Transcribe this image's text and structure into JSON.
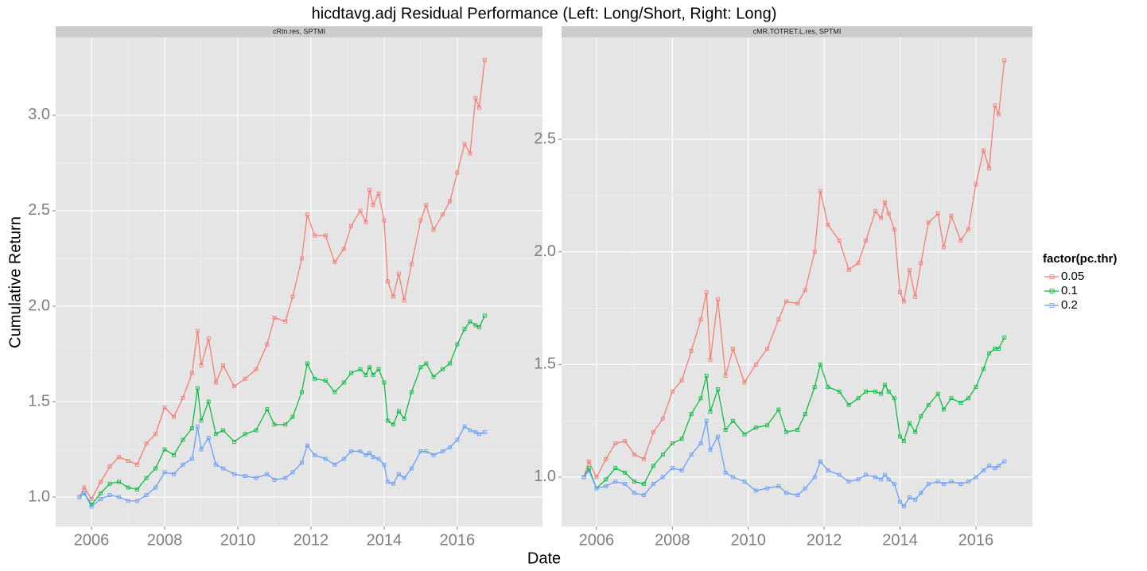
{
  "title": "hicdtavg.adj Residual Performance (Left: Long/Short, Right: Long)",
  "x_label": "Date",
  "y_label": "Cumulative Return",
  "legend": {
    "title": "factor(pc.thr)",
    "position": "right"
  },
  "chart_data": [
    {
      "type": "line",
      "subtitle": "cRtn.res, SPTMI",
      "grid": true,
      "x": [
        2005.67,
        2005.8,
        2006.0,
        2006.25,
        2006.5,
        2006.75,
        2007.0,
        2007.25,
        2007.5,
        2007.75,
        2008.0,
        2008.25,
        2008.5,
        2008.75,
        2008.9,
        2009.0,
        2009.2,
        2009.4,
        2009.6,
        2009.9,
        2010.2,
        2010.5,
        2010.8,
        2011.0,
        2011.3,
        2011.5,
        2011.75,
        2011.9,
        2012.1,
        2012.4,
        2012.65,
        2012.9,
        2013.1,
        2013.35,
        2013.5,
        2013.6,
        2013.7,
        2013.85,
        2014.0,
        2014.1,
        2014.25,
        2014.4,
        2014.55,
        2014.75,
        2015.0,
        2015.15,
        2015.35,
        2015.6,
        2015.8,
        2016.0,
        2016.2,
        2016.35,
        2016.5,
        2016.6,
        2016.75
      ],
      "xlim": [
        2005.02,
        2018.33
      ],
      "xticks": [
        2006,
        2008,
        2010,
        2012,
        2014,
        2016
      ],
      "ylim": [
        0.846,
        3.408
      ],
      "yticks": [
        {
          "value": 1,
          "label": "1.0"
        },
        {
          "value": 1.5,
          "label": "1.5"
        },
        {
          "value": 2,
          "label": "2.0"
        },
        {
          "value": 2.5,
          "label": "2.5"
        },
        {
          "value": 3,
          "label": "3.0"
        }
      ],
      "series": [
        {
          "name": "0.05",
          "color": "#F8766D",
          "values": [
            1.0,
            1.05,
            0.99,
            1.08,
            1.16,
            1.21,
            1.19,
            1.17,
            1.28,
            1.33,
            1.47,
            1.42,
            1.52,
            1.65,
            1.87,
            1.69,
            1.83,
            1.6,
            1.69,
            1.58,
            1.62,
            1.67,
            1.8,
            1.94,
            1.92,
            2.05,
            2.25,
            2.48,
            2.37,
            2.37,
            2.23,
            2.3,
            2.42,
            2.5,
            2.44,
            2.61,
            2.53,
            2.59,
            2.45,
            2.13,
            2.05,
            2.17,
            2.03,
            2.22,
            2.45,
            2.53,
            2.4,
            2.48,
            2.55,
            2.7,
            2.85,
            2.8,
            3.09,
            3.04,
            3.29
          ]
        },
        {
          "name": "0.1",
          "color": "#00BA38",
          "values": [
            1.0,
            1.02,
            0.96,
            1.02,
            1.07,
            1.08,
            1.05,
            1.04,
            1.1,
            1.15,
            1.25,
            1.22,
            1.3,
            1.36,
            1.57,
            1.4,
            1.5,
            1.33,
            1.35,
            1.29,
            1.33,
            1.35,
            1.46,
            1.38,
            1.38,
            1.42,
            1.55,
            1.7,
            1.62,
            1.61,
            1.55,
            1.6,
            1.65,
            1.67,
            1.64,
            1.68,
            1.64,
            1.67,
            1.6,
            1.4,
            1.38,
            1.45,
            1.41,
            1.55,
            1.68,
            1.7,
            1.63,
            1.67,
            1.7,
            1.8,
            1.88,
            1.92,
            1.9,
            1.89,
            1.95
          ]
        },
        {
          "name": "0.2",
          "color": "#619CFF",
          "values": [
            1.0,
            1.02,
            0.95,
            0.99,
            1.01,
            1.0,
            0.98,
            0.98,
            1.01,
            1.05,
            1.13,
            1.12,
            1.17,
            1.2,
            1.37,
            1.25,
            1.31,
            1.17,
            1.15,
            1.12,
            1.11,
            1.1,
            1.12,
            1.09,
            1.1,
            1.13,
            1.18,
            1.27,
            1.22,
            1.2,
            1.17,
            1.2,
            1.24,
            1.24,
            1.22,
            1.23,
            1.21,
            1.2,
            1.17,
            1.08,
            1.07,
            1.12,
            1.1,
            1.15,
            1.24,
            1.24,
            1.22,
            1.24,
            1.26,
            1.3,
            1.37,
            1.35,
            1.34,
            1.33,
            1.34
          ]
        }
      ]
    },
    {
      "type": "line",
      "subtitle": "cMR.TOTRET.L.res, SPTMI",
      "grid": true,
      "x": [
        2005.67,
        2005.8,
        2006.0,
        2006.25,
        2006.5,
        2006.75,
        2007.0,
        2007.25,
        2007.5,
        2007.75,
        2008.0,
        2008.25,
        2008.5,
        2008.75,
        2008.9,
        2009.0,
        2009.2,
        2009.4,
        2009.6,
        2009.9,
        2010.2,
        2010.5,
        2010.8,
        2011.0,
        2011.3,
        2011.5,
        2011.75,
        2011.9,
        2012.1,
        2012.4,
        2012.65,
        2012.9,
        2013.1,
        2013.35,
        2013.5,
        2013.6,
        2013.7,
        2013.85,
        2014.0,
        2014.1,
        2014.25,
        2014.4,
        2014.55,
        2014.75,
        2015.0,
        2015.15,
        2015.35,
        2015.6,
        2015.8,
        2016.0,
        2016.2,
        2016.35,
        2016.5,
        2016.6,
        2016.75
      ],
      "xlim": [
        2005.08,
        2017.49
      ],
      "xticks": [
        2006,
        2008,
        2010,
        2012,
        2014,
        2016
      ],
      "ylim": [
        0.781,
        2.952
      ],
      "yticks": [
        {
          "value": 1,
          "label": "1.0"
        },
        {
          "value": 1.5,
          "label": "1.5"
        },
        {
          "value": 2,
          "label": "2.0"
        },
        {
          "value": 2.5,
          "label": "2.5"
        }
      ],
      "series": [
        {
          "color": "#F8766D",
          "values": [
            1.0,
            1.07,
            1.0,
            1.08,
            1.15,
            1.16,
            1.1,
            1.08,
            1.2,
            1.26,
            1.38,
            1.43,
            1.56,
            1.7,
            1.82,
            1.52,
            1.79,
            1.45,
            1.57,
            1.42,
            1.5,
            1.57,
            1.7,
            1.78,
            1.77,
            1.83,
            2.0,
            2.27,
            2.12,
            2.05,
            1.92,
            1.95,
            2.05,
            2.18,
            2.15,
            2.22,
            2.17,
            2.1,
            1.82,
            1.78,
            1.92,
            1.8,
            1.95,
            2.13,
            2.17,
            2.02,
            2.16,
            2.05,
            2.1,
            2.3,
            2.45,
            2.37,
            2.65,
            2.61,
            2.85
          ]
        },
        {
          "color": "#00BA38",
          "values": [
            1.0,
            1.04,
            0.95,
            0.99,
            1.04,
            1.02,
            0.98,
            0.97,
            1.05,
            1.1,
            1.15,
            1.17,
            1.28,
            1.35,
            1.45,
            1.29,
            1.39,
            1.21,
            1.25,
            1.19,
            1.22,
            1.23,
            1.3,
            1.2,
            1.21,
            1.28,
            1.4,
            1.5,
            1.4,
            1.38,
            1.32,
            1.35,
            1.38,
            1.38,
            1.37,
            1.41,
            1.38,
            1.35,
            1.18,
            1.16,
            1.24,
            1.2,
            1.27,
            1.32,
            1.37,
            1.3,
            1.35,
            1.33,
            1.35,
            1.4,
            1.48,
            1.55,
            1.57,
            1.57,
            1.62
          ]
        },
        {
          "color": "#619CFF",
          "values": [
            1.0,
            1.03,
            0.95,
            0.96,
            0.98,
            0.97,
            0.93,
            0.92,
            0.97,
            1.0,
            1.04,
            1.03,
            1.1,
            1.15,
            1.25,
            1.12,
            1.18,
            1.02,
            1.0,
            0.98,
            0.94,
            0.95,
            0.96,
            0.93,
            0.92,
            0.95,
            1.0,
            1.07,
            1.03,
            1.01,
            0.98,
            0.99,
            1.01,
            1.0,
            0.99,
            1.01,
            0.99,
            0.97,
            0.89,
            0.87,
            0.91,
            0.9,
            0.93,
            0.97,
            0.98,
            0.97,
            0.98,
            0.97,
            0.98,
            1.0,
            1.03,
            1.05,
            1.04,
            1.05,
            1.07
          ]
        }
      ]
    }
  ]
}
